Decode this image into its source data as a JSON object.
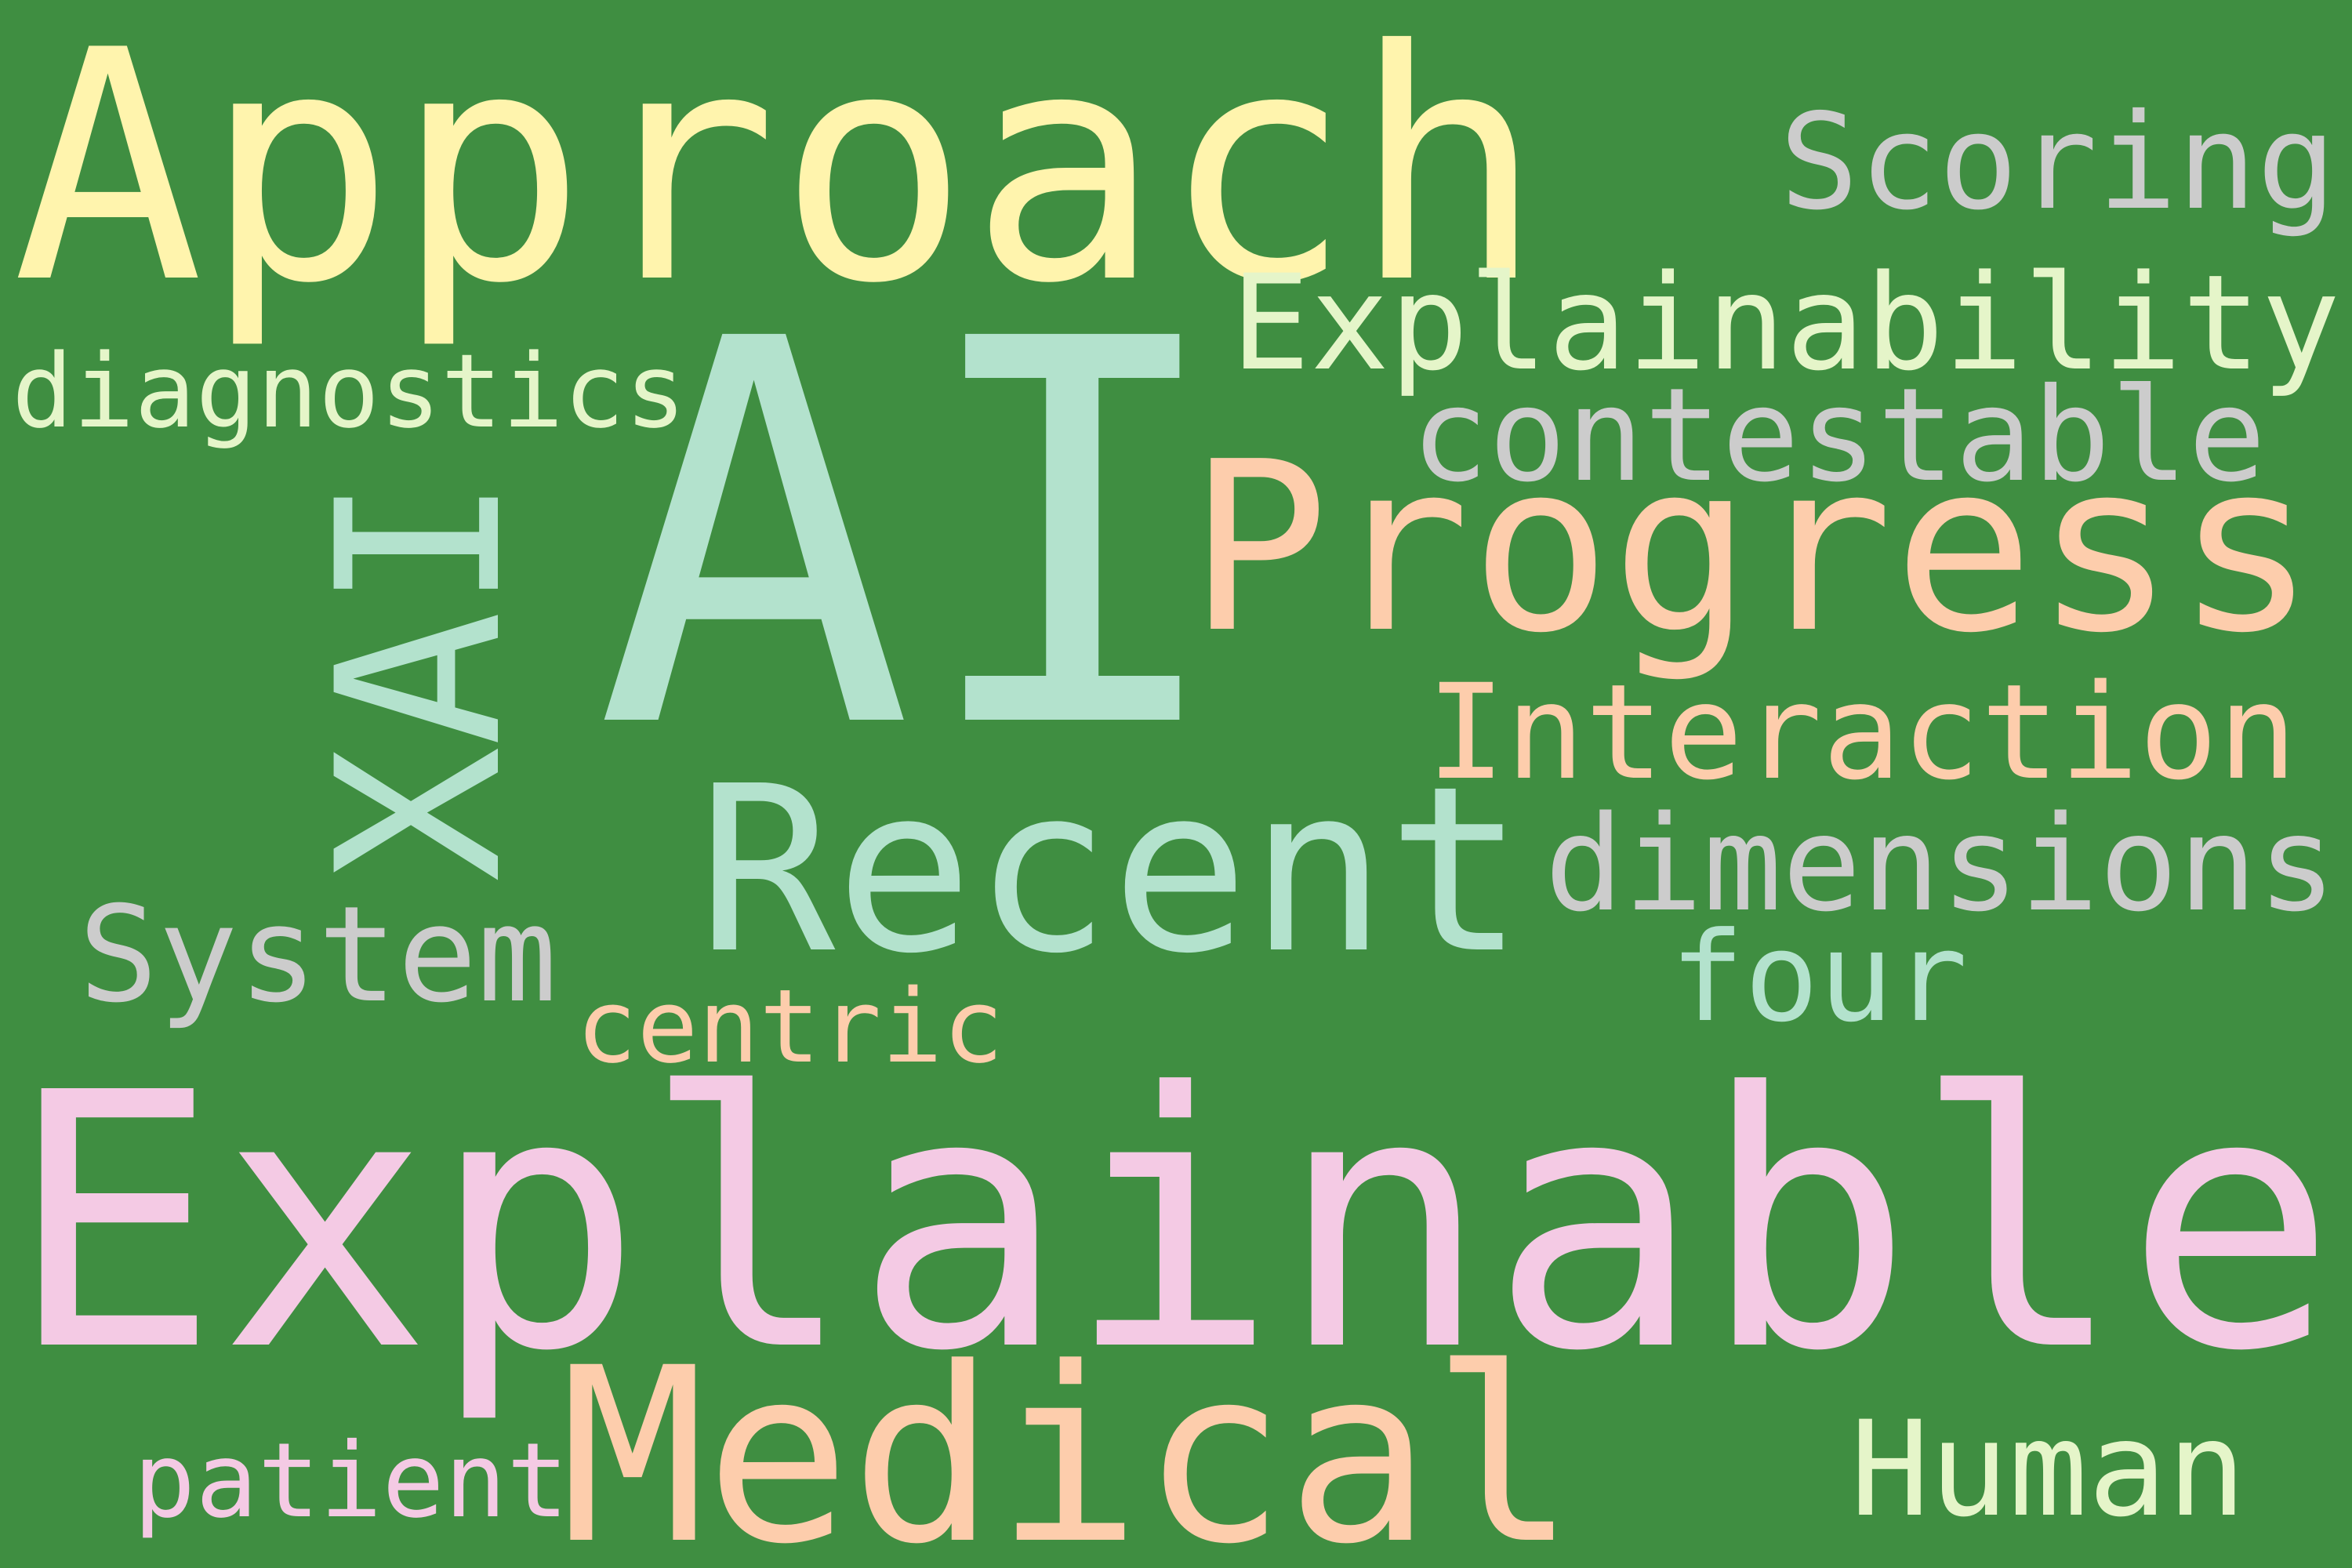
{
  "background_color": "#3f8e41",
  "words": [
    {
      "id": "approach",
      "text": "Approach",
      "color": "#fff4ad",
      "orientation": "horizontal"
    },
    {
      "id": "scoring",
      "text": "Scoring",
      "color": "#cccccc",
      "orientation": "horizontal"
    },
    {
      "id": "explainability",
      "text": "Explainability",
      "color": "#e5f5c9",
      "orientation": "horizontal"
    },
    {
      "id": "diagnostics",
      "text": "diagnostics",
      "color": "#e5f5c9",
      "orientation": "horizontal"
    },
    {
      "id": "ai",
      "text": "AI",
      "color": "#b3e2cd",
      "orientation": "horizontal"
    },
    {
      "id": "contestable",
      "text": "contestable",
      "color": "#cccccc",
      "orientation": "horizontal"
    },
    {
      "id": "progress",
      "text": "Progress",
      "color": "#fdcdac",
      "orientation": "horizontal"
    },
    {
      "id": "xai",
      "text": "XAI",
      "color": "#b3e2cd",
      "orientation": "vertical"
    },
    {
      "id": "interaction",
      "text": "Interaction",
      "color": "#fdcdac",
      "orientation": "horizontal"
    },
    {
      "id": "recent",
      "text": "Recent",
      "color": "#b3e2cd",
      "orientation": "horizontal"
    },
    {
      "id": "dimensions",
      "text": "dimensions",
      "color": "#cccccc",
      "orientation": "horizontal"
    },
    {
      "id": "system",
      "text": "System",
      "color": "#cccccc",
      "orientation": "horizontal"
    },
    {
      "id": "four",
      "text": "four",
      "color": "#b3e2cd",
      "orientation": "horizontal"
    },
    {
      "id": "centric",
      "text": "centric",
      "color": "#fdcdac",
      "orientation": "horizontal"
    },
    {
      "id": "explainable",
      "text": "Explainable",
      "color": "#f4cae4",
      "orientation": "horizontal"
    },
    {
      "id": "medical",
      "text": "Medical",
      "color": "#fdcdac",
      "orientation": "horizontal"
    },
    {
      "id": "human",
      "text": "Human",
      "color": "#e5f5c9",
      "orientation": "horizontal"
    },
    {
      "id": "patient",
      "text": "patient",
      "color": "#f4cae4",
      "orientation": "horizontal"
    }
  ]
}
